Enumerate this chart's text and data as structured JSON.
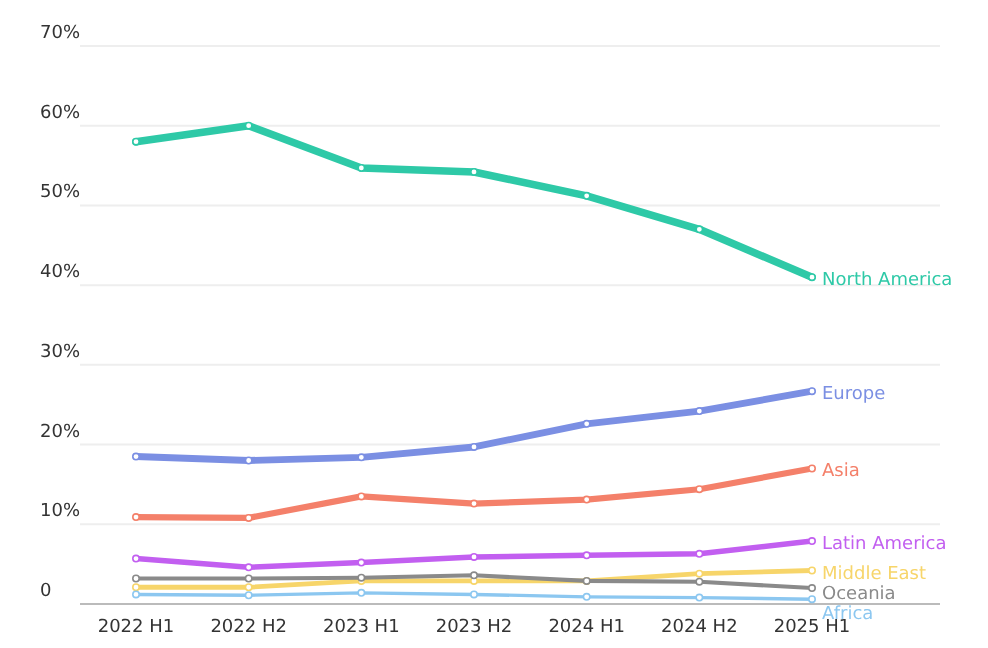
{
  "chart_data": {
    "type": "line",
    "categories": [
      "2022 H1",
      "2022 H2",
      "2023 H1",
      "2023 H2",
      "2024 H1",
      "2024 H2",
      "2025 H1"
    ],
    "series": [
      {
        "name": "North America",
        "color": "#2ec9a7",
        "values": [
          58,
          60,
          54.7,
          54.2,
          51.2,
          47,
          41
        ]
      },
      {
        "name": "Europe",
        "color": "#7b8fe3",
        "values": [
          18.5,
          18,
          18.4,
          19.7,
          22.6,
          24.2,
          26.7
        ]
      },
      {
        "name": "Asia",
        "color": "#f4806a",
        "values": [
          10.9,
          10.8,
          13.5,
          12.6,
          13.1,
          14.4,
          17
        ]
      },
      {
        "name": "Latin America",
        "color": "#c25ff0",
        "values": [
          5.7,
          4.6,
          5.2,
          5.9,
          6.1,
          6.3,
          7.9
        ]
      },
      {
        "name": "Middle East",
        "color": "#f7d56a",
        "values": [
          2.1,
          2.1,
          2.9,
          2.9,
          2.9,
          3.8,
          4.2
        ]
      },
      {
        "name": "Oceania",
        "color": "#8a8a8a",
        "values": [
          3.2,
          3.2,
          3.3,
          3.6,
          2.9,
          2.8,
          2
        ]
      },
      {
        "name": "Africa",
        "color": "#8cc7f0",
        "values": [
          1.2,
          1.1,
          1.4,
          1.2,
          0.9,
          0.8,
          0.6
        ]
      }
    ],
    "ylim": [
      0,
      70
    ],
    "yticks": [
      {
        "value": 0,
        "label": "0"
      },
      {
        "value": 10,
        "label": "10%"
      },
      {
        "value": 20,
        "label": "20%"
      },
      {
        "value": 30,
        "label": "30%"
      },
      {
        "value": 40,
        "label": "40%"
      },
      {
        "value": 50,
        "label": "50%"
      },
      {
        "value": 60,
        "label": "60%"
      },
      {
        "value": 70,
        "label": "70%"
      }
    ],
    "grid": "y",
    "marker": "circle",
    "line_style": "solid"
  }
}
